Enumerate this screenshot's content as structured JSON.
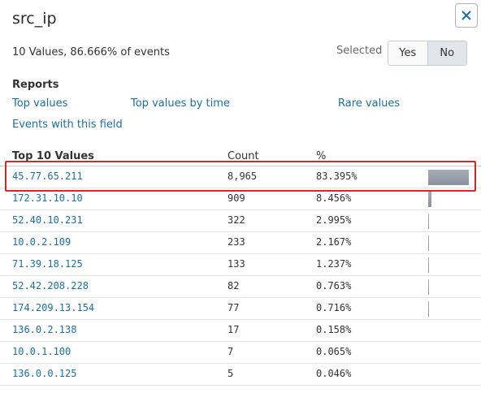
{
  "header": {
    "title": "src_ip",
    "summary": "10 Values, 86.666% of events"
  },
  "selected": {
    "label": "Selected",
    "yes_label": "Yes",
    "no_label": "No",
    "active": "No"
  },
  "reports": {
    "heading": "Reports",
    "links": {
      "top_values": "Top values",
      "top_values_by_time": "Top values by time",
      "rare_values": "Rare values",
      "events_with_field": "Events with this field"
    }
  },
  "table": {
    "headers": {
      "value": "Top 10 Values",
      "count": "Count",
      "percent": "%"
    },
    "rows": [
      {
        "value": "45.77.65.211",
        "count": "8,965",
        "percent": "83.395%",
        "fraction": 0.83395
      },
      {
        "value": "172.31.10.10",
        "count": "909",
        "percent": "8.456%",
        "fraction": 0.08456
      },
      {
        "value": "52.40.10.231",
        "count": "322",
        "percent": "2.995%",
        "fraction": 0.02995
      },
      {
        "value": "10.0.2.109",
        "count": "233",
        "percent": "2.167%",
        "fraction": 0.02167
      },
      {
        "value": "71.39.18.125",
        "count": "133",
        "percent": "1.237%",
        "fraction": 0.01237
      },
      {
        "value": "52.42.208.228",
        "count": "82",
        "percent": "0.763%",
        "fraction": 0.00763
      },
      {
        "value": "174.209.13.154",
        "count": "77",
        "percent": "0.716%",
        "fraction": 0.00716
      },
      {
        "value": "136.0.2.138",
        "count": "17",
        "percent": "0.158%",
        "fraction": 0.00158
      },
      {
        "value": "10.0.1.100",
        "count": "7",
        "percent": "0.065%",
        "fraction": 0.00065
      },
      {
        "value": "136.0.0.125",
        "count": "5",
        "percent": "0.046%",
        "fraction": 0.00046
      }
    ]
  },
  "colors": {
    "link": "#1a6fa8",
    "highlight": "#d62728",
    "bar": "#9aa2ab"
  }
}
